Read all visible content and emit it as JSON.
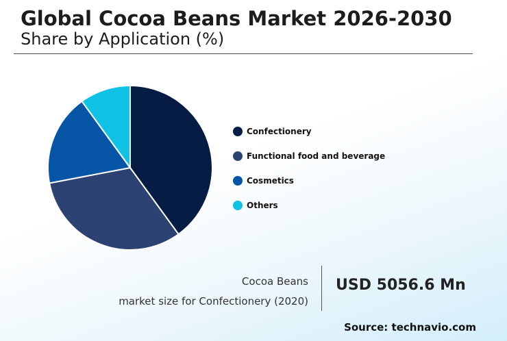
{
  "header": {
    "title": "Global Cocoa Beans Market 2026-2030",
    "subtitle": "Share by Application (%)"
  },
  "chart_data": {
    "type": "pie",
    "title": "Global Cocoa Beans Market 2026-2030",
    "subtitle": "Share by Application (%)",
    "categories": [
      "Confectionery",
      "Functional food and beverage",
      "Cosmetics",
      "Others"
    ],
    "values": [
      40,
      32,
      18,
      10
    ],
    "colors": [
      "#071c45",
      "#2b4272",
      "#0755a6",
      "#10c3e4"
    ],
    "legend_position": "right"
  },
  "footer": {
    "caption_line1": "Cocoa Beans",
    "caption_line2": "market size for Confectionery (2020)",
    "market_value": "USD 5056.6 Mn",
    "source": "Source: technavio.com"
  }
}
